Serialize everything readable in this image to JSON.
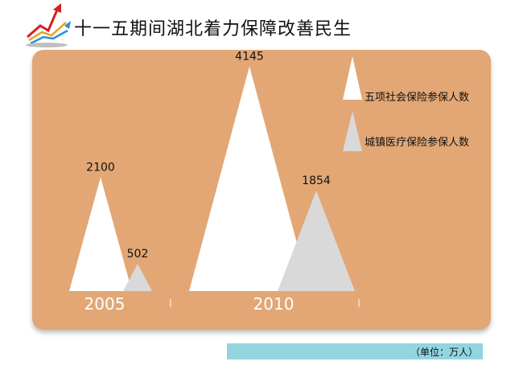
{
  "page": {
    "title": "十一五期间湖北着力保障改善民生"
  },
  "unit_note": "（单位：万人）",
  "colors": {
    "panel": "#e2a775",
    "series_pension": "#ffffff",
    "series_medical": "#d9d9d9",
    "unit_bar": "#92d5df"
  },
  "chart_data": {
    "type": "bar",
    "mark": "triangle",
    "categories": [
      "2005",
      "2010"
    ],
    "series": [
      {
        "name": "五项社会保险参保人数",
        "values": [
          2100,
          4145
        ],
        "color": "#ffffff"
      },
      {
        "name": "城镇医疗保险参保人数",
        "values": [
          502,
          1854
        ],
        "color": "#d9d9d9"
      }
    ],
    "ylim": [
      0,
      4300
    ],
    "grid": false,
    "legend": "top-right",
    "title": "十一五期间湖北着力保障改善民生",
    "xlabel": "",
    "ylabel": "",
    "unit": "（单位：万人）"
  }
}
